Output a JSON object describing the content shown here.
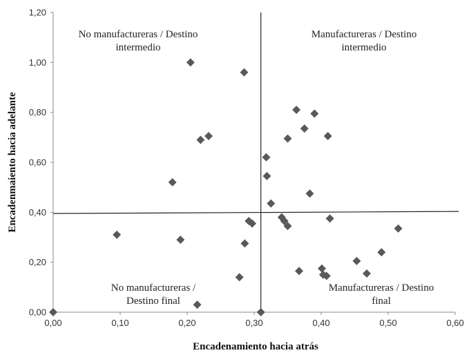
{
  "chart_data": {
    "type": "scatter",
    "xlabel": "Encadenamiento hacia atrás",
    "ylabel": "Encadenmaiento  hacia adelante",
    "xlim": [
      0,
      0.6
    ],
    "ylim": [
      0,
      1.2
    ],
    "x_ticks": [
      "0,00",
      "0,10",
      "0,20",
      "0,30",
      "0,40",
      "0,50",
      "0,60"
    ],
    "y_ticks": [
      "0,00",
      "0,20",
      "0,40",
      "0,60",
      "0,80",
      "1,00",
      "1,20"
    ],
    "divider_x": 0.31,
    "divider_y": 0.395,
    "marker_color": "#595959",
    "grid": false,
    "quadrant_labels": {
      "top_left": [
        "No manufactureras / Destino",
        "intermedio"
      ],
      "top_right": [
        "Manufactureras / Destino",
        "intermedio"
      ],
      "bottom_left": [
        "No manufactureras /",
        "Destino final"
      ],
      "bottom_right": [
        "Manufactureras / Destino",
        "final"
      ]
    },
    "points": [
      {
        "x": 0.0,
        "y": 0.0
      },
      {
        "x": 0.31,
        "y": 0.0
      },
      {
        "x": 0.095,
        "y": 0.31
      },
      {
        "x": 0.178,
        "y": 0.52
      },
      {
        "x": 0.19,
        "y": 0.29
      },
      {
        "x": 0.205,
        "y": 1.0
      },
      {
        "x": 0.215,
        "y": 0.03
      },
      {
        "x": 0.22,
        "y": 0.69
      },
      {
        "x": 0.232,
        "y": 0.705
      },
      {
        "x": 0.278,
        "y": 0.14
      },
      {
        "x": 0.285,
        "y": 0.96
      },
      {
        "x": 0.286,
        "y": 0.275
      },
      {
        "x": 0.292,
        "y": 0.365
      },
      {
        "x": 0.297,
        "y": 0.355
      },
      {
        "x": 0.318,
        "y": 0.62
      },
      {
        "x": 0.319,
        "y": 0.545
      },
      {
        "x": 0.325,
        "y": 0.435
      },
      {
        "x": 0.341,
        "y": 0.38
      },
      {
        "x": 0.345,
        "y": 0.365
      },
      {
        "x": 0.35,
        "y": 0.345
      },
      {
        "x": 0.35,
        "y": 0.695
      },
      {
        "x": 0.363,
        "y": 0.81
      },
      {
        "x": 0.367,
        "y": 0.165
      },
      {
        "x": 0.375,
        "y": 0.735
      },
      {
        "x": 0.383,
        "y": 0.475
      },
      {
        "x": 0.39,
        "y": 0.795
      },
      {
        "x": 0.401,
        "y": 0.175
      },
      {
        "x": 0.403,
        "y": 0.15
      },
      {
        "x": 0.408,
        "y": 0.145
      },
      {
        "x": 0.41,
        "y": 0.705
      },
      {
        "x": 0.413,
        "y": 0.375
      },
      {
        "x": 0.453,
        "y": 0.205
      },
      {
        "x": 0.468,
        "y": 0.155
      },
      {
        "x": 0.49,
        "y": 0.24
      },
      {
        "x": 0.515,
        "y": 0.335
      }
    ]
  }
}
